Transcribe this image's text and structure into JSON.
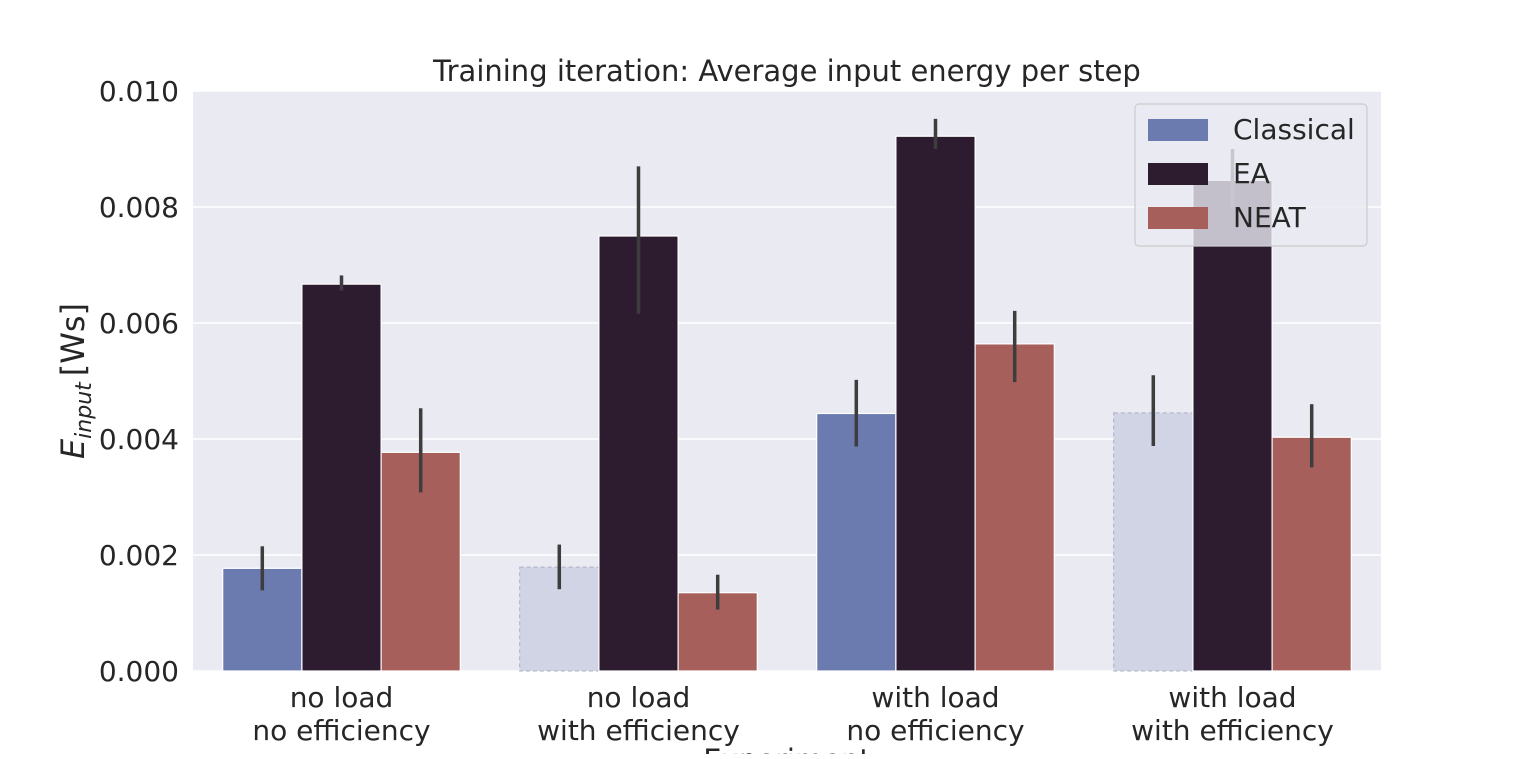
{
  "chart_data": {
    "type": "bar",
    "title": "Training iteration: Average input energy per step",
    "ylabel": "E_input [Ws]",
    "ylabel_main": "E",
    "ylabel_sub": "input",
    "ylabel_unit": "[Ws]",
    "xlabel": "Experiment",
    "ylim": [
      0,
      0.01
    ],
    "yticks": [
      "0.000",
      "0.002",
      "0.004",
      "0.006",
      "0.008",
      "0.010"
    ],
    "categories": [
      [
        "no load",
        "no efficiency"
      ],
      [
        "no load",
        "with efficiency"
      ],
      [
        "with load",
        "no efficiency"
      ],
      [
        "with load",
        "with efficiency"
      ]
    ],
    "series": [
      {
        "name": "Classical",
        "color": "#6b7baf",
        "values": [
          0.00177,
          0.00179,
          0.00444,
          0.00445
        ],
        "err_low": [
          0.00139,
          0.00141,
          0.00387,
          0.00388
        ],
        "err_high": [
          0.00215,
          0.00218,
          0.00502,
          0.0051
        ],
        "faded": [
          false,
          true,
          false,
          true
        ]
      },
      {
        "name": "EA",
        "color": "#2d1b30",
        "values": [
          0.00667,
          0.0075,
          0.00922,
          0.00846
        ],
        "err_low": [
          0.00656,
          0.00616,
          0.009,
          0.008
        ],
        "err_high": [
          0.00682,
          0.0087,
          0.00952,
          0.009
        ],
        "faded": [
          false,
          false,
          false,
          false
        ]
      },
      {
        "name": "NEAT",
        "color": "#a75f5c",
        "values": [
          0.00377,
          0.00135,
          0.00564,
          0.00403
        ],
        "err_low": [
          0.00308,
          0.00106,
          0.00498,
          0.00351
        ],
        "err_high": [
          0.00453,
          0.00166,
          0.00621,
          0.0046
        ],
        "faded": [
          false,
          false,
          false,
          false
        ]
      }
    ],
    "grid": true,
    "legend_position": "top-right",
    "background": "#eaeaf2",
    "faded_fill": "#d1d4e4",
    "errorbar_color": "#3d3d3d"
  }
}
